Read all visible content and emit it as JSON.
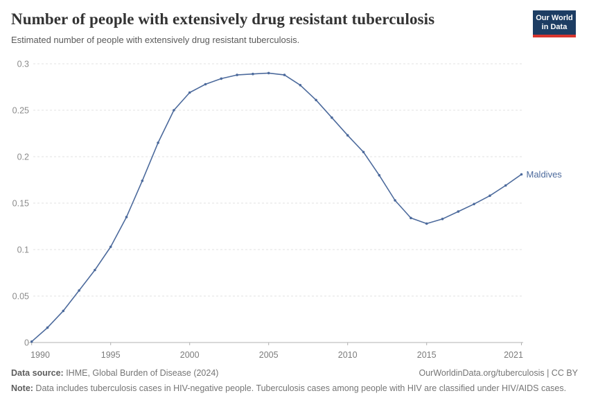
{
  "logo": {
    "line1": "Our World",
    "line2": "in Data",
    "bg_color": "#1d3d63",
    "bar_color": "#d8352e"
  },
  "chart_data": {
    "type": "line",
    "title": "Number of people with extensively drug resistant tuberculosis",
    "subtitle": "Estimated number of people with extensively drug resistant tuberculosis.",
    "xlabel": "",
    "ylabel": "",
    "xlim": [
      1990,
      2021
    ],
    "ylim": [
      0,
      0.3
    ],
    "grid": "horizontal-dashed",
    "legend_position": "end-of-line-label",
    "xticks": [
      1990,
      1995,
      2000,
      2005,
      2010,
      2015,
      2021
    ],
    "yticks": [
      0,
      0.05,
      0.1,
      0.15,
      0.2,
      0.25,
      0.3
    ],
    "ytick_labels": [
      "0",
      "0.05",
      "0.1",
      "0.15",
      "0.2",
      "0.25",
      "0.3"
    ],
    "series": [
      {
        "name": "Maldives",
        "color": "#4c6a9c",
        "x": [
          1990,
          1991,
          1992,
          1993,
          1994,
          1995,
          1996,
          1997,
          1998,
          1999,
          2000,
          2001,
          2002,
          2003,
          2004,
          2005,
          2006,
          2007,
          2008,
          2009,
          2010,
          2011,
          2012,
          2013,
          2014,
          2015,
          2016,
          2017,
          2018,
          2019,
          2020,
          2021
        ],
        "values": [
          0.001,
          0.016,
          0.034,
          0.056,
          0.078,
          0.103,
          0.135,
          0.174,
          0.215,
          0.25,
          0.269,
          0.278,
          0.284,
          0.288,
          0.289,
          0.29,
          0.288,
          0.277,
          0.261,
          0.242,
          0.223,
          0.205,
          0.18,
          0.153,
          0.134,
          0.128,
          0.133,
          0.141,
          0.149,
          0.158,
          0.169,
          0.181
        ]
      }
    ],
    "colors": {
      "gridline": "#e0e0e0",
      "axis": "#b0b0b0",
      "ytick_text": "#8b8b8b",
      "xtick_text": "#7b7b7b"
    }
  },
  "footer": {
    "data_source_label": "Data source:",
    "data_source_value": " IHME, Global Burden of Disease (2024)",
    "link": "OurWorldinData.org/tuberculosis | CC BY",
    "note_label": "Note:",
    "note_value": " Data includes tuberculosis cases in HIV-negative people. Tuberculosis cases among people with HIV are classified under HIV/AIDS cases."
  }
}
